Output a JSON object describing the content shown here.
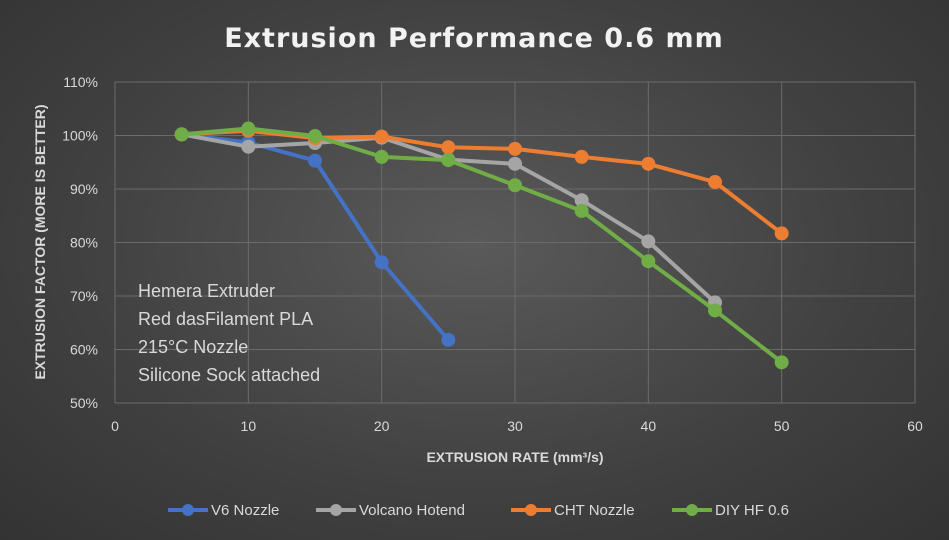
{
  "chart_data": {
    "type": "line",
    "title": "Extrusion Performance 0.6 mm",
    "xlabel": "EXTRUSION RATE (mm³/s)",
    "ylabel": "EXTRUSION FACTOR (MORE IS BETTER)",
    "xlim": [
      0,
      60
    ],
    "ylim": [
      50,
      110
    ],
    "xticks": [
      0,
      10,
      20,
      30,
      40,
      50,
      60
    ],
    "yticks": [
      50,
      60,
      70,
      80,
      90,
      100,
      110
    ],
    "ytick_labels": [
      "50%",
      "60%",
      "70%",
      "80%",
      "90%",
      "100%",
      "110%"
    ],
    "grid": true,
    "legend_position": "bottom",
    "annotations": [
      "Hemera Extruder",
      "Red dasFilament PLA",
      "215°C Nozzle",
      "Silicone Sock attached"
    ],
    "series": [
      {
        "name": "V6 Nozzle",
        "color": "#4472c4",
        "x": [
          5,
          10,
          15,
          20,
          25
        ],
        "y": [
          100.2,
          98.7,
          95.3,
          76.3,
          61.8
        ]
      },
      {
        "name": "Volcano Hotend",
        "color": "#a5a5a5",
        "x": [
          5,
          10,
          15,
          20,
          25,
          30,
          35,
          40,
          45
        ],
        "y": [
          100.2,
          97.9,
          98.6,
          99.6,
          95.5,
          94.7,
          87.9,
          80.2,
          68.8
        ]
      },
      {
        "name": "CHT Nozzle",
        "color": "#ed7d31",
        "x": [
          5,
          10,
          15,
          20,
          25,
          30,
          35,
          40,
          45,
          50
        ],
        "y": [
          100.2,
          100.9,
          99.5,
          99.8,
          97.8,
          97.5,
          96.0,
          94.7,
          91.3,
          81.7
        ]
      },
      {
        "name": "DIY HF 0.6",
        "color": "#70ad47",
        "x": [
          5,
          10,
          15,
          20,
          25,
          30,
          35,
          40,
          45,
          50
        ],
        "y": [
          100.2,
          101.3,
          99.9,
          96.0,
          95.4,
          90.7,
          85.9,
          76.5,
          67.3,
          57.6
        ]
      }
    ]
  }
}
